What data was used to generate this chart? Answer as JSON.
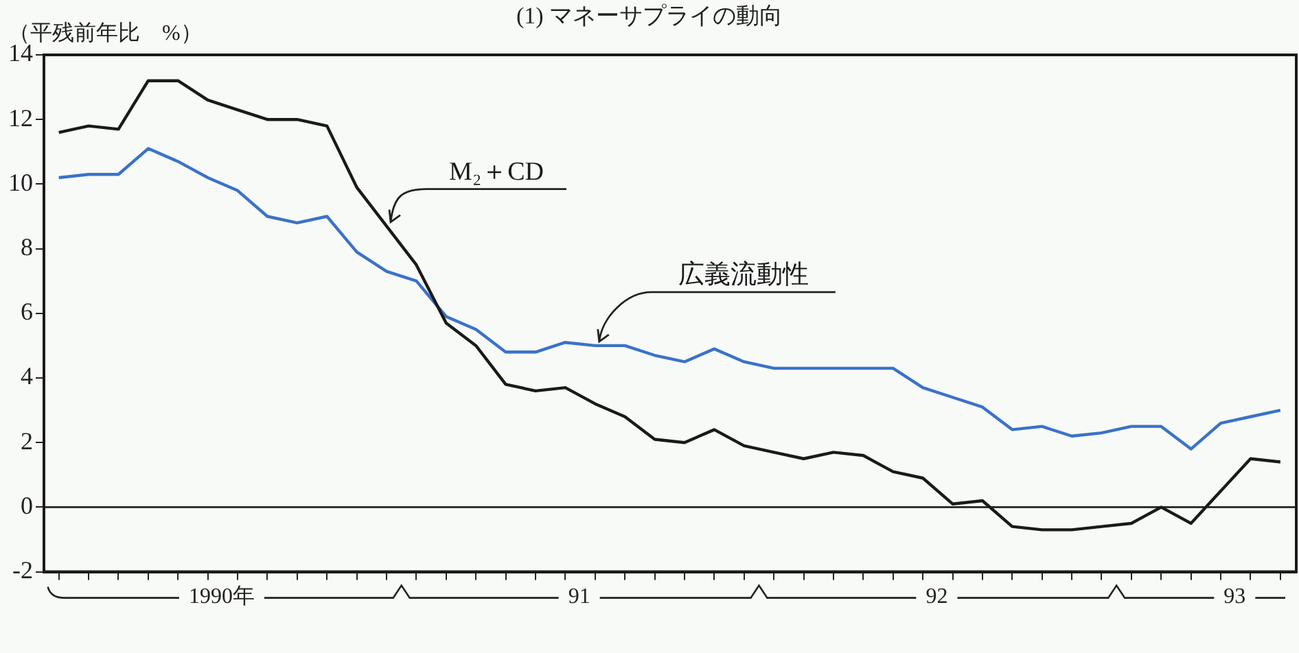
{
  "chart_data": {
    "type": "line",
    "title": "(1) マネーサプライの動向",
    "ylabel": "（平残前年比　%）",
    "x": [
      "1990-01",
      "1990-02",
      "1990-03",
      "1990-04",
      "1990-05",
      "1990-06",
      "1990-07",
      "1990-08",
      "1990-09",
      "1990-10",
      "1990-11",
      "1990-12",
      "1991-01",
      "1991-02",
      "1991-03",
      "1991-04",
      "1991-05",
      "1991-06",
      "1991-07",
      "1991-08",
      "1991-09",
      "1991-10",
      "1991-11",
      "1991-12",
      "1992-01",
      "1992-02",
      "1992-03",
      "1992-04",
      "1992-05",
      "1992-06",
      "1992-07",
      "1992-08",
      "1992-09",
      "1992-10",
      "1992-11",
      "1992-12",
      "1993-01",
      "1993-02",
      "1993-03",
      "1993-04",
      "1993-05",
      "1993-06"
    ],
    "series": [
      {
        "name": "M₂＋CD",
        "color": "#1a1a1a",
        "values": [
          11.6,
          11.8,
          11.7,
          13.2,
          13.2,
          12.6,
          12.3,
          12.0,
          12.0,
          11.8,
          9.9,
          8.7,
          7.5,
          5.7,
          5.0,
          3.8,
          3.6,
          3.7,
          3.2,
          2.8,
          2.1,
          2.0,
          2.4,
          1.9,
          1.7,
          1.5,
          1.7,
          1.6,
          1.1,
          0.9,
          0.1,
          0.2,
          -0.6,
          -0.7,
          -0.7,
          -0.6,
          -0.5,
          0.0,
          -0.5,
          0.5,
          1.5,
          1.4
        ]
      },
      {
        "name": "広義流動性",
        "color": "#3a72c8",
        "values": [
          10.2,
          10.3,
          10.3,
          11.1,
          10.7,
          10.2,
          9.8,
          9.0,
          8.8,
          9.0,
          7.9,
          7.3,
          7.0,
          5.9,
          5.5,
          4.8,
          4.8,
          5.1,
          5.0,
          5.0,
          4.7,
          4.5,
          4.9,
          4.5,
          4.3,
          4.3,
          4.3,
          4.3,
          4.3,
          3.7,
          3.4,
          3.1,
          2.4,
          2.5,
          2.2,
          2.3,
          2.5,
          2.5,
          1.8,
          2.6,
          2.8,
          3.0
        ]
      }
    ],
    "xlim": [
      "1989-12-16",
      "1993-06-17"
    ],
    "xticks": [
      {
        "value": "1990-01",
        "label": null
      },
      {
        "value": "1990-02",
        "label": null
      },
      {
        "value": "1990-03",
        "label": null
      },
      {
        "value": "1990-04",
        "label": null
      },
      {
        "value": "1990-05",
        "label": null
      },
      {
        "value": "1990-06",
        "label": null
      },
      {
        "value": "1990-06-15",
        "label": "1990年"
      },
      {
        "value": "1990-07",
        "label": null
      },
      {
        "value": "1990-08",
        "label": null
      },
      {
        "value": "1990-09",
        "label": null
      },
      {
        "value": "1990-10",
        "label": null
      },
      {
        "value": "1990-11",
        "label": null
      },
      {
        "value": "1990-12",
        "label": null
      },
      {
        "value": "1991-01",
        "label": null
      },
      {
        "value": "1991-02",
        "label": null
      },
      {
        "value": "1991-03",
        "label": null
      },
      {
        "value": "1991-04",
        "label": null
      },
      {
        "value": "1991-05",
        "label": null
      },
      {
        "value": "1991-06",
        "label": null
      },
      {
        "value": "1991-06-15",
        "label": "91"
      },
      {
        "value": "1991-07",
        "label": null
      },
      {
        "value": "1991-08",
        "label": null
      },
      {
        "value": "1991-09",
        "label": null
      },
      {
        "value": "1991-10",
        "label": null
      },
      {
        "value": "1991-11",
        "label": null
      },
      {
        "value": "1991-12",
        "label": null
      },
      {
        "value": "1992-01",
        "label": null
      },
      {
        "value": "1992-02",
        "label": null
      },
      {
        "value": "1992-03",
        "label": null
      },
      {
        "value": "1992-04",
        "label": null
      },
      {
        "value": "1992-05",
        "label": null
      },
      {
        "value": "1992-06",
        "label": null
      },
      {
        "value": "1992-06-15",
        "label": "92"
      },
      {
        "value": "1992-07",
        "label": null
      },
      {
        "value": "1992-08",
        "label": null
      },
      {
        "value": "1992-09",
        "label": null
      },
      {
        "value": "1992-10",
        "label": null
      },
      {
        "value": "1992-11",
        "label": null
      },
      {
        "value": "1992-12",
        "label": null
      },
      {
        "value": "1993-01",
        "label": null
      },
      {
        "value": "1993-02",
        "label": null
      },
      {
        "value": "1993-03",
        "label": null
      },
      {
        "value": "1993-04",
        "label": null
      },
      {
        "value": "1993-04-15",
        "label": "93"
      },
      {
        "value": "1993-05",
        "label": null
      },
      {
        "value": "1993-06",
        "label": null
      }
    ],
    "ylim": [
      -2,
      14
    ],
    "yticks": [
      -2,
      0,
      2,
      4,
      6,
      8,
      10,
      12,
      14
    ],
    "ref_lines": [
      {
        "axis": "y",
        "value": 0,
        "color": "#222222"
      }
    ],
    "grid": false,
    "legend": false,
    "marker": "none",
    "line_style": "solid"
  }
}
